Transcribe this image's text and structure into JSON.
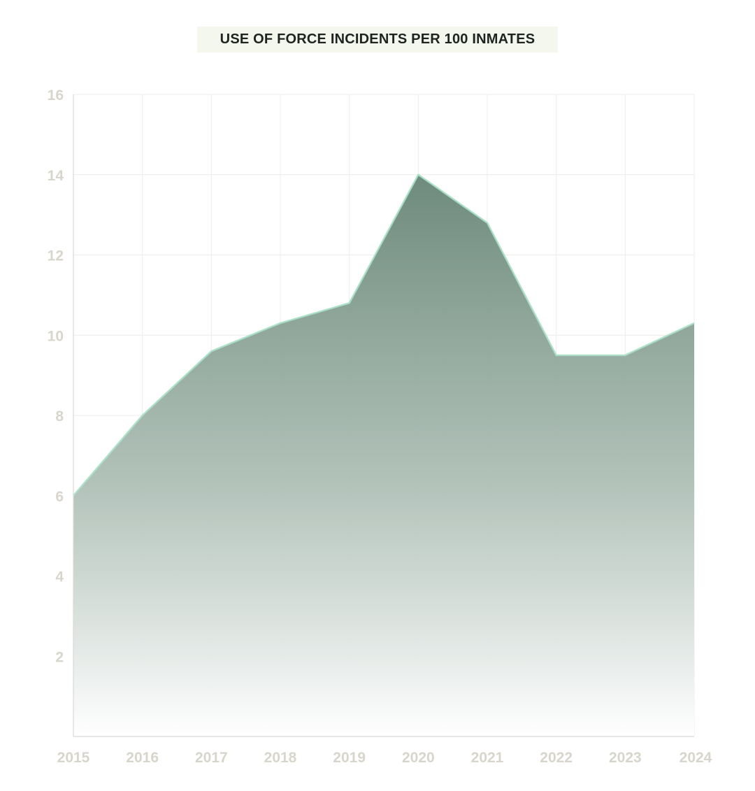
{
  "chart_data": {
    "type": "area",
    "title": "USE OF FORCE INCIDENTS PER 100 INMATES",
    "xlabel": "",
    "ylabel": "",
    "x": [
      "2015",
      "2016",
      "2017",
      "2018",
      "2019",
      "2020",
      "2021",
      "2022",
      "2023",
      "2024"
    ],
    "series": [
      {
        "name": "Use of force incidents per 100 inmates",
        "values": [
          6.0,
          8.0,
          9.6,
          10.3,
          10.8,
          14.0,
          12.8,
          9.5,
          9.5,
          10.3
        ]
      }
    ],
    "ylim": [
      0,
      16
    ],
    "yticks": [
      2,
      4,
      6,
      8,
      10,
      12,
      14,
      16
    ],
    "grid": true,
    "legend": "none",
    "colors": {
      "area_top": "#6e8b7d",
      "area_bottom": "#ffffff",
      "line": "#a8e0c8",
      "grid": "#ececea",
      "axis": "#d9d8d4",
      "tick_text": "#d8d6cc"
    }
  }
}
